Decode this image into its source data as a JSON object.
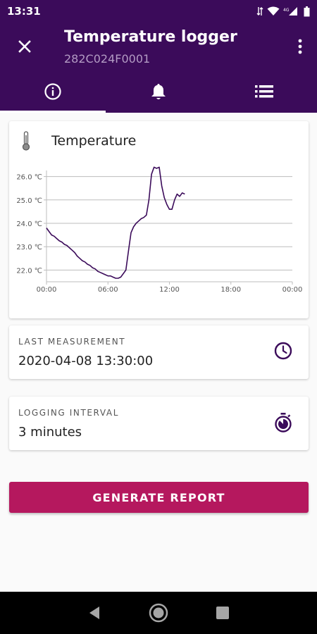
{
  "status_bar": {
    "time": "13:31"
  },
  "app_bar": {
    "title": "Temperature logger",
    "subtitle": "282C024F0001"
  },
  "tabs": [
    {
      "name": "info-icon",
      "active": true
    },
    {
      "name": "bell-icon",
      "active": false
    },
    {
      "name": "list-icon",
      "active": false
    }
  ],
  "temperature_card": {
    "title": "Temperature"
  },
  "chart_data": {
    "type": "line",
    "title": "",
    "xlabel": "",
    "ylabel": "",
    "x_tick_labels": [
      "00:00",
      "06:00",
      "12:00",
      "18:00",
      "00:00"
    ],
    "y_tick_labels": [
      "22.0 ℃",
      "23.0 ℃",
      "24.0 ℃",
      "25.0 ℃",
      "26.0 ℃"
    ],
    "xlim_hours": [
      0,
      24
    ],
    "ylim": [
      21.5,
      26.5
    ],
    "grid": "horizontal",
    "color": "#3b0b5a",
    "series": [
      {
        "x_hours": [
          0.0,
          0.25,
          0.5,
          0.75,
          1.0,
          1.25,
          1.5,
          1.75,
          2.0,
          2.25,
          2.5,
          2.75,
          3.0,
          3.25,
          3.5,
          3.75,
          4.0,
          4.25,
          4.5,
          4.75,
          5.0,
          5.25,
          5.5,
          5.75,
          6.0,
          6.25,
          6.5,
          6.75,
          7.0,
          7.25,
          7.5,
          7.75,
          8.0,
          8.25,
          8.5,
          8.75,
          9.0,
          9.25,
          9.5,
          9.75,
          10.0,
          10.25,
          10.5,
          10.75,
          11.0,
          11.25,
          11.5,
          11.75,
          12.0,
          12.25,
          12.5,
          12.75,
          13.0,
          13.25,
          13.5
        ],
        "y": [
          23.8,
          23.65,
          23.5,
          23.45,
          23.35,
          23.25,
          23.2,
          23.1,
          23.05,
          22.95,
          22.85,
          22.75,
          22.6,
          22.5,
          22.4,
          22.35,
          22.25,
          22.2,
          22.1,
          22.05,
          21.95,
          21.9,
          21.85,
          21.8,
          21.75,
          21.75,
          21.7,
          21.65,
          21.65,
          21.7,
          21.85,
          22.0,
          22.8,
          23.6,
          23.85,
          24.0,
          24.1,
          24.2,
          24.25,
          24.35,
          25.0,
          26.1,
          26.4,
          26.35,
          26.4,
          25.6,
          25.1,
          24.8,
          24.6,
          24.6,
          25.0,
          25.25,
          25.15,
          25.3,
          25.25
        ]
      }
    ]
  },
  "last_measurement": {
    "label": "LAST MEASUREMENT",
    "value": "2020-04-08 13:30:00"
  },
  "logging_interval": {
    "label": "LOGGING INTERVAL",
    "value": "3 minutes"
  },
  "actions": {
    "generate_report": "GENERATE REPORT"
  }
}
